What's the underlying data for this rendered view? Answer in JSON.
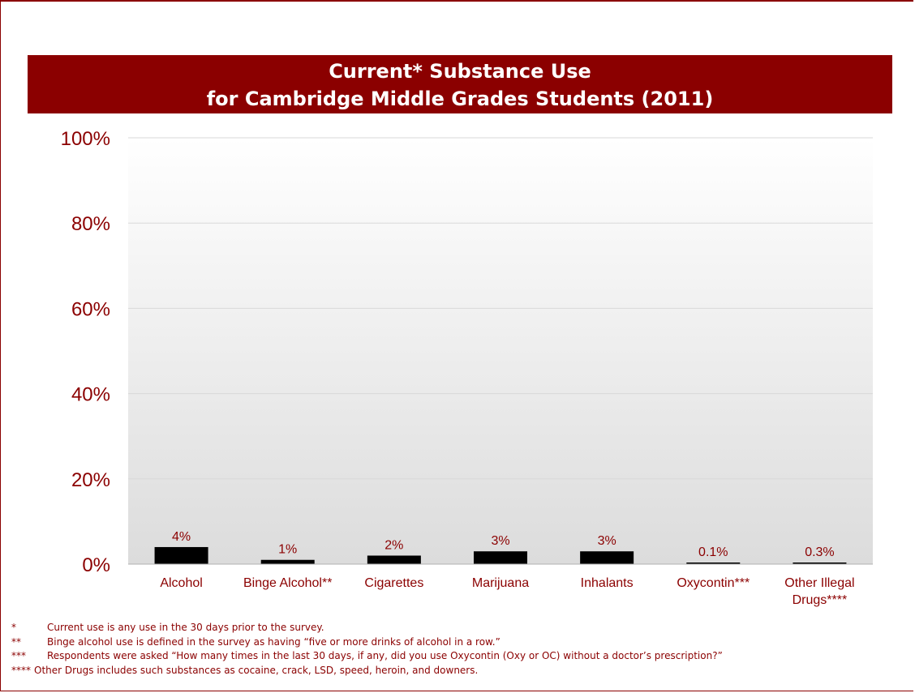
{
  "title": {
    "line1": "Current* Substance Use",
    "line2": "for Cambridge Middle Grades Students (2011)"
  },
  "chart_data": {
    "type": "bar",
    "categories": [
      "Alcohol",
      "Binge Alcohol**",
      "Cigarettes",
      "Marijuana",
      "Inhalants",
      "Oxycontin***",
      "Other Illegal Drugs****"
    ],
    "category_lines": [
      [
        "Alcohol"
      ],
      [
        "Binge Alcohol**"
      ],
      [
        "Cigarettes"
      ],
      [
        "Marijuana"
      ],
      [
        "Inhalants"
      ],
      [
        "Oxycontin***"
      ],
      [
        "Other Illegal",
        "Drugs****"
      ]
    ],
    "values": [
      4,
      1,
      2,
      3,
      3,
      0.1,
      0.3
    ],
    "data_labels": [
      "4%",
      "1%",
      "2%",
      "3%",
      "3%",
      "0.1%",
      "0.3%"
    ],
    "ylim": [
      0,
      100
    ],
    "yticks": [
      "0%",
      "20%",
      "40%",
      "60%",
      "80%",
      "100%"
    ],
    "ytick_values": [
      0,
      20,
      40,
      60,
      80,
      100
    ],
    "grid": true,
    "bar_color": "#000000",
    "label_color": "#8b0000",
    "xlabel": "",
    "ylabel": ""
  },
  "footnotes": [
    {
      "mark": "*",
      "text": "Current use is any use in the 30 days prior to the survey."
    },
    {
      "mark": "**",
      "text": "Binge alcohol use is defined in the survey as having “five or more drinks of alcohol in a row.”"
    },
    {
      "mark": "***",
      "text": "Respondents were asked “How many times in the last 30 days, if any, did you use Oxycontin (Oxy or OC) without a doctor’s prescription?”"
    },
    {
      "mark": "****",
      "text": "Other Drugs includes such substances as cocaine, crack, LSD, speed, heroin, and downers."
    }
  ],
  "colors": {
    "accent": "#8b0000",
    "bar": "#000000"
  }
}
